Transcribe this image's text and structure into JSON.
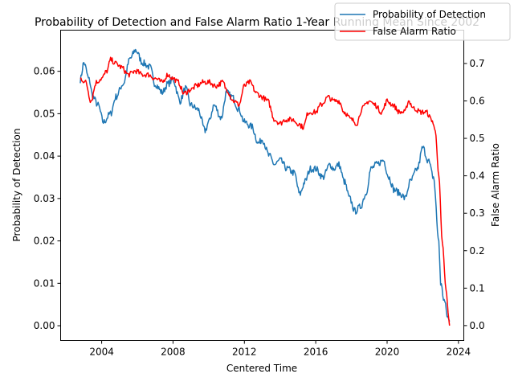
{
  "chart_data": {
    "type": "line",
    "title": "Probability of Detection and False Alarm Ratio 1-Year Running Mean Since 2002",
    "xlabel": "Centered Time",
    "ylabel_left": "Probability of Detection",
    "ylabel_right": "False Alarm Ratio",
    "xlim": [
      2001.7,
      2024.3
    ],
    "ylim_left": [
      -0.0035,
      0.0697
    ],
    "ylim_right": [
      -0.04,
      0.789
    ],
    "x_ticks": [
      2004,
      2008,
      2012,
      2016,
      2020,
      2024
    ],
    "y_ticks_left": [
      0.0,
      0.01,
      0.02,
      0.03,
      0.04,
      0.05,
      0.06
    ],
    "y_tick_labels_left": [
      "0.00",
      "0.01",
      "0.02",
      "0.03",
      "0.04",
      "0.05",
      "0.06"
    ],
    "y_ticks_right": [
      0.0,
      0.1,
      0.2,
      0.3,
      0.4,
      0.5,
      0.6,
      0.7
    ],
    "y_tick_labels_right": [
      "0.0",
      "0.1",
      "0.2",
      "0.3",
      "0.4",
      "0.5",
      "0.6",
      "0.7"
    ],
    "legend": {
      "position": "top-right"
    },
    "series": [
      {
        "name": "Probability of Detection",
        "axis": "left",
        "color": "#1f77b4",
        "x": [
          2002.8,
          2003.0,
          2003.3,
          2003.5,
          2003.8,
          2004.1,
          2004.5,
          2004.8,
          2005.2,
          2005.6,
          2005.9,
          2006.3,
          2006.7,
          2007.0,
          2007.4,
          2007.7,
          2008.0,
          2008.4,
          2008.7,
          2009.0,
          2009.4,
          2009.8,
          2010.0,
          2010.3,
          2010.7,
          2011.0,
          2011.3,
          2011.7,
          2012.0,
          2012.4,
          2012.8,
          2013.0,
          2013.4,
          2013.7,
          2014.0,
          2014.4,
          2014.8,
          2015.1,
          2015.4,
          2015.7,
          2016.0,
          2016.4,
          2016.8,
          2017.0,
          2017.3,
          2017.6,
          2017.9,
          2018.2,
          2018.5,
          2018.8,
          2019.1,
          2019.4,
          2019.8,
          2020.1,
          2020.4,
          2020.8,
          2021.0,
          2021.3,
          2021.7,
          2022.0,
          2022.3,
          2022.6,
          2022.9,
          2023.0,
          2023.2,
          2023.4,
          2023.5
        ],
        "values": [
          0.058,
          0.062,
          0.058,
          0.054,
          0.052,
          0.048,
          0.05,
          0.054,
          0.057,
          0.063,
          0.065,
          0.062,
          0.061,
          0.057,
          0.055,
          0.057,
          0.058,
          0.053,
          0.056,
          0.052,
          0.051,
          0.046,
          0.048,
          0.052,
          0.049,
          0.055,
          0.054,
          0.051,
          0.048,
          0.047,
          0.043,
          0.044,
          0.04,
          0.038,
          0.039,
          0.037,
          0.036,
          0.031,
          0.034,
          0.037,
          0.037,
          0.035,
          0.038,
          0.037,
          0.038,
          0.034,
          0.03,
          0.027,
          0.028,
          0.031,
          0.037,
          0.038,
          0.039,
          0.035,
          0.032,
          0.031,
          0.03,
          0.034,
          0.037,
          0.042,
          0.039,
          0.035,
          0.02,
          0.01,
          0.006,
          0.002,
          0.001
        ]
      },
      {
        "name": "False Alarm Ratio",
        "axis": "right",
        "color": "#ff0000",
        "x": [
          2002.8,
          2003.1,
          2003.4,
          2003.7,
          2004.0,
          2004.3,
          2004.5,
          2004.8,
          2005.1,
          2005.5,
          2005.9,
          2006.3,
          2006.6,
          2007.0,
          2007.4,
          2007.7,
          2008.0,
          2008.3,
          2008.6,
          2009.0,
          2009.3,
          2009.7,
          2010.0,
          2010.4,
          2010.8,
          2011.0,
          2011.4,
          2011.7,
          2012.0,
          2012.3,
          2012.7,
          2013.0,
          2013.3,
          2013.7,
          2014.0,
          2014.3,
          2014.7,
          2015.0,
          2015.3,
          2015.6,
          2016.0,
          2016.3,
          2016.7,
          2017.0,
          2017.3,
          2017.6,
          2018.0,
          2018.3,
          2018.6,
          2019.0,
          2019.3,
          2019.7,
          2020.0,
          2020.3,
          2020.7,
          2021.0,
          2021.2,
          2021.5,
          2021.9,
          2022.2,
          2022.5,
          2022.7,
          2022.9,
          2023.1,
          2023.3,
          2023.5
        ],
        "values": [
          0.66,
          0.65,
          0.6,
          0.65,
          0.66,
          0.68,
          0.71,
          0.7,
          0.69,
          0.67,
          0.68,
          0.67,
          0.67,
          0.66,
          0.65,
          0.67,
          0.66,
          0.65,
          0.62,
          0.63,
          0.64,
          0.65,
          0.65,
          0.64,
          0.65,
          0.63,
          0.6,
          0.59,
          0.64,
          0.65,
          0.62,
          0.61,
          0.6,
          0.55,
          0.54,
          0.55,
          0.55,
          0.54,
          0.53,
          0.57,
          0.57,
          0.59,
          0.61,
          0.6,
          0.6,
          0.57,
          0.55,
          0.54,
          0.58,
          0.6,
          0.59,
          0.57,
          0.6,
          0.59,
          0.57,
          0.57,
          0.6,
          0.58,
          0.57,
          0.57,
          0.55,
          0.52,
          0.4,
          0.22,
          0.1,
          0.0
        ]
      }
    ]
  }
}
